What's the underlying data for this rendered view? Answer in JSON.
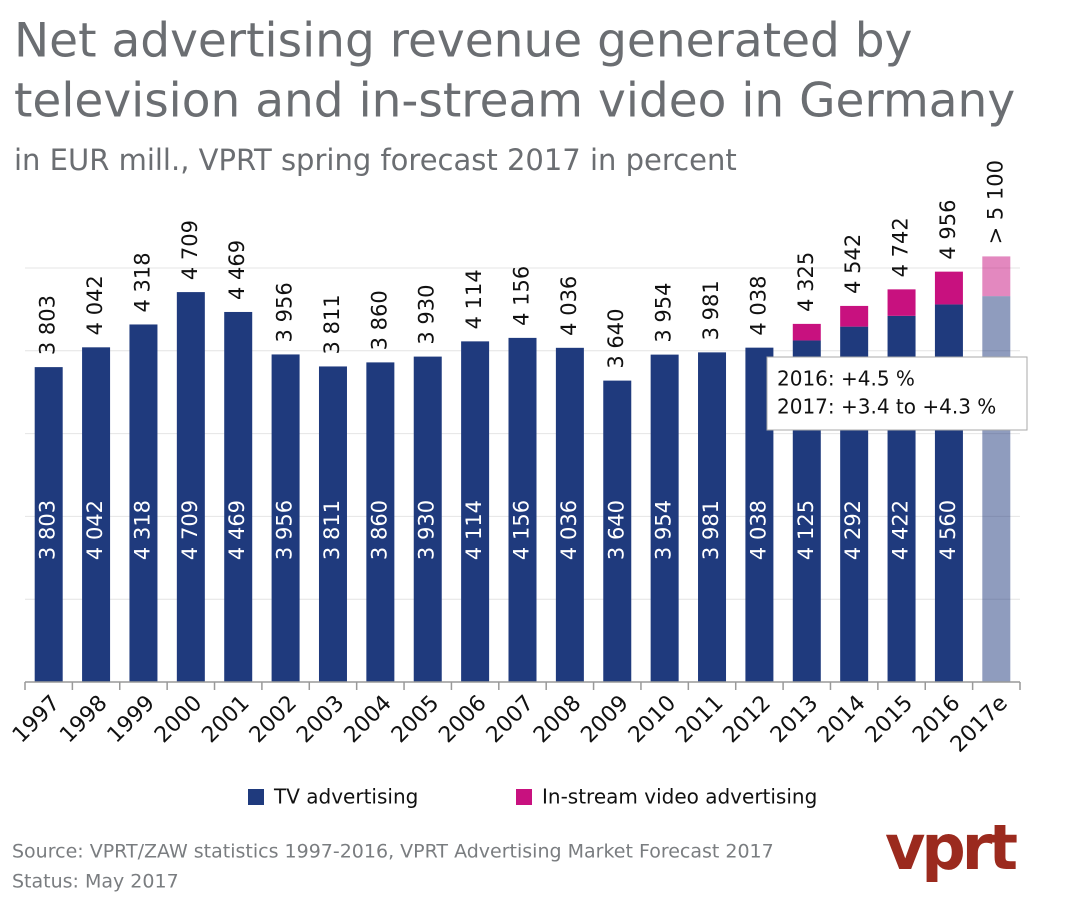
{
  "chart_data": {
    "type": "stacked_bar",
    "title": [
      "Net advertising revenue generated by",
      "television and in-stream video in Germany"
    ],
    "subtitle": "in EUR mill., VPRT spring forecast 2017 in percent",
    "categories": [
      "1997",
      "1998",
      "1999",
      "2000",
      "2001",
      "2002",
      "2003",
      "2004",
      "2005",
      "2006",
      "2007",
      "2008",
      "2009",
      "2010",
      "2011",
      "2012",
      "2013",
      "2014",
      "2015",
      "2016",
      "2017e"
    ],
    "series": [
      {
        "name": "TV advertising",
        "color": "#1f3a7d",
        "values": [
          3803,
          4042,
          4318,
          4709,
          4469,
          3956,
          3811,
          3860,
          3930,
          4114,
          4156,
          4036,
          3640,
          3954,
          3981,
          4038,
          4125,
          4292,
          4422,
          4560,
          4660
        ],
        "value_labels": [
          "3 803",
          "4 042",
          "4 318",
          "4 709",
          "4 469",
          "3 956",
          "3 811",
          "3 860",
          "3 930",
          "4 114",
          "4 156",
          "4 036",
          "3 640",
          "3 954",
          "3 981",
          "4 038",
          "4 125",
          "4 292",
          "4 422",
          "4 560",
          null
        ]
      },
      {
        "name": "In-stream video advertising",
        "color": "#c8117f",
        "values": [
          null,
          null,
          null,
          null,
          null,
          null,
          null,
          null,
          null,
          null,
          null,
          null,
          null,
          null,
          null,
          null,
          200,
          250,
          320,
          396,
          480
        ]
      }
    ],
    "total_labels": [
      "3 803",
      "4 042",
      "4 318",
      "4 709",
      "4 469",
      "3 956",
      "3 811",
      "3 860",
      "3 930",
      "4 114",
      "4 156",
      "4 036",
      "3 640",
      "3 954",
      "3 981",
      "4 038",
      "4 325",
      "4 542",
      "4 742",
      "4 956",
      "> 5 100"
    ],
    "estimate": "2017e",
    "ylim": [
      0,
      5000
    ],
    "gridlines": [
      1000,
      2000,
      3000,
      4000,
      5000
    ],
    "annotation": [
      "2016: +4.5 %",
      "2017: +3.4 to +4.3 %"
    ],
    "source": [
      "Source: VPRT/ZAW statistics 1997-2016, VPRT Advertising Market Forecast 2017",
      "Status:  May 2017"
    ],
    "logo": "vprt"
  }
}
